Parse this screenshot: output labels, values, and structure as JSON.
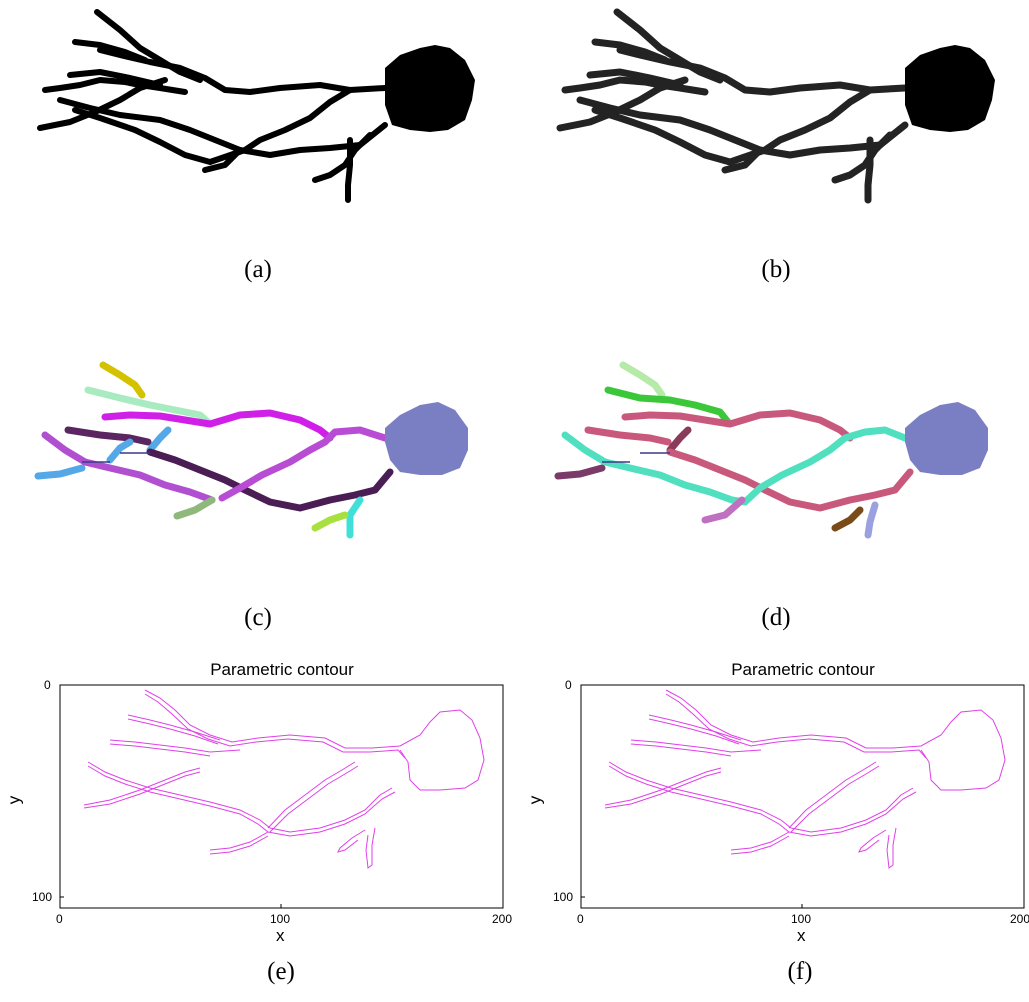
{
  "captions": [
    "(a)",
    "(b)",
    "(c)",
    "(d)",
    "(e)",
    "(f)"
  ],
  "plots": [
    {
      "title": "Parametric contour",
      "xlabel": "x",
      "ylabel": "y",
      "xticks": [
        "0",
        "100",
        "200"
      ],
      "yticks": [
        "0",
        "100"
      ],
      "xlim": [
        0,
        200
      ],
      "ylim": [
        0,
        105
      ],
      "line_color": "#e040e8"
    },
    {
      "title": "Parametric contour",
      "xlabel": "x",
      "ylabel": "y",
      "xticks": [
        "0",
        "100",
        "200"
      ],
      "yticks": [
        "0",
        "100"
      ],
      "xlim": [
        0,
        200
      ],
      "ylim": [
        0,
        105
      ],
      "line_color": "#e040e8"
    }
  ],
  "colors": {
    "soma_segmented": "#7a7fc4",
    "binary": "#000000"
  }
}
